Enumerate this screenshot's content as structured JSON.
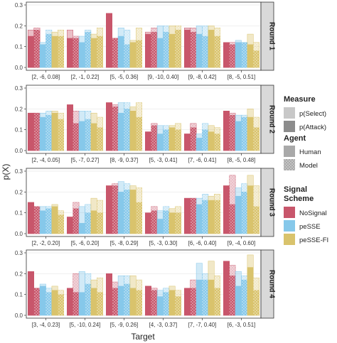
{
  "chart_data": {
    "type": "bar",
    "ylabel": "p(X)",
    "xlabel": "Target",
    "ylim": [
      0,
      0.3
    ],
    "yticks": [
      0.0,
      0.1,
      0.2,
      0.3
    ],
    "ytick_labels": [
      "0.0",
      "0.1",
      "0.2",
      "0.3"
    ],
    "grid": true,
    "legend_position": "right",
    "legend": {
      "measure": {
        "title": "Measure",
        "items": [
          "p(Select)",
          "p(Attack)"
        ]
      },
      "agent": {
        "title": "Agent",
        "items": [
          "Human",
          "Model"
        ]
      },
      "scheme": {
        "title": "Signal Scheme",
        "items": [
          {
            "name": "NoSignal",
            "color": "#c8566b"
          },
          {
            "name": "peSSE",
            "color": "#86c8ea"
          },
          {
            "name": "peSSE-FI",
            "color": "#d9c36c"
          }
        ]
      }
    },
    "series_order": [
      "NoSignal/Human",
      "NoSignal/Model",
      "peSSE/Human",
      "peSSE/Model",
      "peSSE-FI/Human",
      "peSSE-FI/Model"
    ],
    "panels": [
      {
        "name": "Round 1",
        "categories": [
          "[2, -6, 0.08]",
          "[2, -1, 0.22]",
          "[5, -5, 0.36]",
          "[9, -10, 0.40]",
          "[9, -8, 0.42]",
          "[8, -5, 0.51]"
        ],
        "select": [
          [
            0.18,
            0.19,
            0.12,
            0.18,
            0.17,
            0.18
          ],
          [
            0.18,
            0.15,
            0.15,
            0.18,
            0.16,
            0.19
          ],
          [
            0.26,
            0.14,
            0.19,
            0.18,
            0.13,
            0.19
          ],
          [
            0.17,
            0.19,
            0.2,
            0.2,
            0.2,
            0.2
          ],
          [
            0.19,
            0.19,
            0.2,
            0.2,
            0.2,
            0.19
          ],
          [
            0.12,
            0.12,
            0.13,
            0.12,
            0.16,
            0.12
          ]
        ],
        "attack": [
          [
            0.15,
            0.18,
            0.11,
            0.16,
            0.15,
            0.15
          ],
          [
            0.14,
            0.14,
            0.12,
            0.17,
            0.14,
            0.15
          ],
          [
            0.26,
            0.14,
            0.15,
            0.11,
            0.12,
            0.13
          ],
          [
            0.16,
            0.17,
            0.14,
            0.17,
            0.16,
            0.18
          ],
          [
            0.18,
            0.17,
            0.16,
            0.15,
            0.18,
            0.15
          ],
          [
            0.12,
            0.11,
            0.12,
            0.12,
            0.11,
            0.08
          ]
        ]
      },
      {
        "name": "Round 2",
        "categories": [
          "[2, -4, 0.05]",
          "[5, -7, 0.27]",
          "[8, -9, 0.37]",
          "[5, -3, 0.41]",
          "[7, -6, 0.41]",
          "[8, -5, 0.48]"
        ],
        "select": [
          [
            0.18,
            0.18,
            0.18,
            0.19,
            0.19,
            0.18
          ],
          [
            0.22,
            0.19,
            0.19,
            0.19,
            0.18,
            0.16
          ],
          [
            0.23,
            0.22,
            0.23,
            0.23,
            0.21,
            0.23
          ],
          [
            0.09,
            0.13,
            0.12,
            0.12,
            0.12,
            0.13
          ],
          [
            0.08,
            0.13,
            0.08,
            0.13,
            0.12,
            0.11
          ],
          [
            0.19,
            0.18,
            0.17,
            0.17,
            0.2,
            0.16
          ]
        ],
        "attack": [
          [
            0.18,
            0.18,
            0.16,
            0.17,
            0.18,
            0.15
          ],
          [
            0.22,
            0.13,
            0.14,
            0.15,
            0.13,
            0.11
          ],
          [
            0.23,
            0.21,
            0.18,
            0.2,
            0.19,
            0.16
          ],
          [
            0.09,
            0.12,
            0.08,
            0.1,
            0.11,
            0.1
          ],
          [
            0.08,
            0.11,
            0.06,
            0.1,
            0.09,
            0.08
          ],
          [
            0.19,
            0.17,
            0.14,
            0.16,
            0.16,
            0.11
          ]
        ]
      },
      {
        "name": "Round 3",
        "categories": [
          "[2, -2, 0.20]",
          "[5, -6, 0.20]",
          "[5, -8, 0.29]",
          "[5, -3, 0.30]",
          "[6, -6, 0.40]",
          "[9, -4, 0.60]"
        ],
        "select": [
          [
            0.15,
            0.13,
            0.13,
            0.13,
            0.14,
            0.11
          ],
          [
            0.08,
            0.15,
            0.13,
            0.14,
            0.17,
            0.16
          ],
          [
            0.23,
            0.24,
            0.25,
            0.24,
            0.23,
            0.22
          ],
          [
            0.1,
            0.13,
            0.11,
            0.13,
            0.12,
            0.13
          ],
          [
            0.17,
            0.17,
            0.17,
            0.19,
            0.18,
            0.19
          ],
          [
            0.23,
            0.28,
            0.22,
            0.24,
            0.28,
            0.23
          ]
        ],
        "attack": [
          [
            0.15,
            0.13,
            0.11,
            0.12,
            0.13,
            0.09
          ],
          [
            0.08,
            0.12,
            0.05,
            0.1,
            0.11,
            0.1
          ],
          [
            0.23,
            0.23,
            0.2,
            0.21,
            0.21,
            0.15
          ],
          [
            0.1,
            0.11,
            0.07,
            0.11,
            0.1,
            0.1
          ],
          [
            0.17,
            0.17,
            0.14,
            0.16,
            0.16,
            0.16
          ],
          [
            0.23,
            0.14,
            0.18,
            0.2,
            0.23,
            0.13
          ]
        ]
      },
      {
        "name": "Round 4",
        "categories": [
          "[3, -4, 0.23]",
          "[5, -10, 0.24]",
          "[5, -9, 0.26]",
          "[4, -3, 0.37]",
          "[7, -7, 0.40]",
          "[6, -3, 0.51]"
        ],
        "select": [
          [
            0.21,
            0.13,
            0.15,
            0.13,
            0.14,
            0.12
          ],
          [
            0.13,
            0.2,
            0.21,
            0.2,
            0.17,
            0.18
          ],
          [
            0.2,
            0.16,
            0.19,
            0.19,
            0.19,
            0.17
          ],
          [
            0.14,
            0.13,
            0.12,
            0.13,
            0.14,
            0.12
          ],
          [
            0.13,
            0.17,
            0.25,
            0.2,
            0.26,
            0.19
          ],
          [
            0.26,
            0.24,
            0.21,
            0.19,
            0.29,
            0.18
          ]
        ],
        "attack": [
          [
            0.21,
            0.13,
            0.14,
            0.11,
            0.12,
            0.1
          ],
          [
            0.13,
            0.11,
            0.11,
            0.15,
            0.13,
            0.11
          ],
          [
            0.2,
            0.13,
            0.14,
            0.15,
            0.13,
            0.12
          ],
          [
            0.14,
            0.12,
            0.09,
            0.11,
            0.12,
            0.09
          ],
          [
            0.13,
            0.13,
            0.17,
            0.17,
            0.17,
            0.13
          ],
          [
            0.26,
            0.19,
            0.14,
            0.17,
            0.23,
            0.12
          ]
        ]
      }
    ]
  }
}
